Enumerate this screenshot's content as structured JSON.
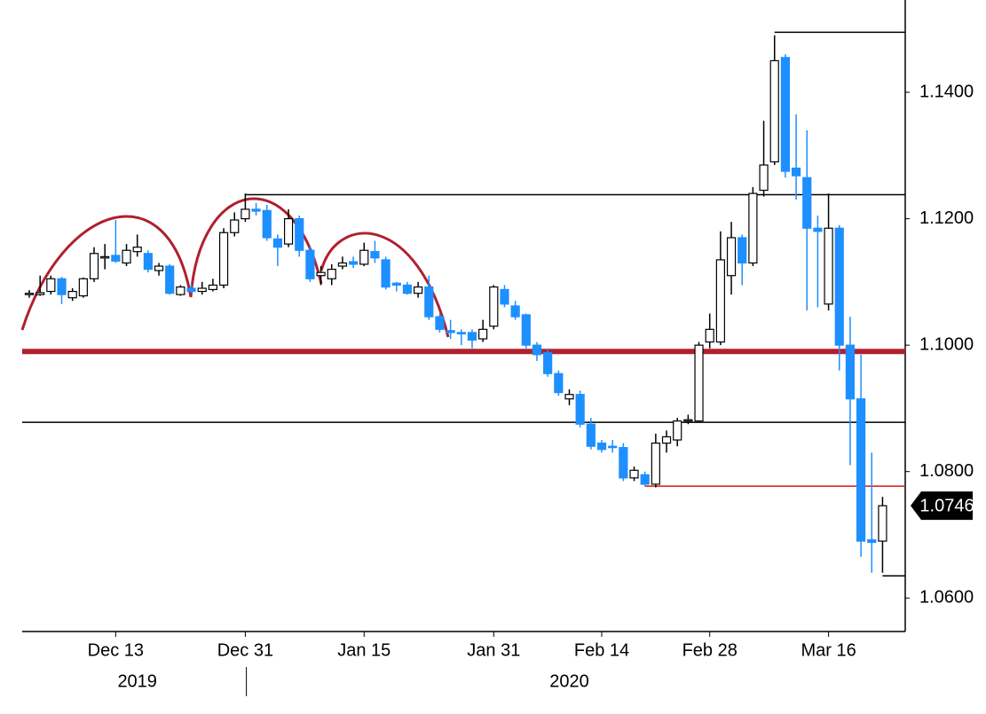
{
  "chart_data": {
    "type": "candlestick",
    "categories": [
      null,
      null,
      null,
      null,
      null,
      null,
      null,
      null,
      "Dec 13",
      null,
      null,
      null,
      null,
      null,
      null,
      null,
      null,
      null,
      null,
      null,
      "Dec 31",
      null,
      null,
      null,
      null,
      null,
      null,
      null,
      null,
      null,
      null,
      "Jan 15",
      null,
      null,
      null,
      null,
      null,
      null,
      null,
      null,
      null,
      null,
      null,
      "Jan 31",
      null,
      null,
      null,
      null,
      null,
      null,
      null,
      null,
      null,
      "Feb 14",
      null,
      null,
      null,
      null,
      null,
      null,
      null,
      null,
      null,
      "Feb 28",
      null,
      null,
      null,
      null,
      null,
      null,
      null,
      null,
      null,
      null,
      "Mar 16",
      null,
      null,
      null,
      null,
      null
    ],
    "years": [
      "2019",
      "2020"
    ],
    "series": [
      {
        "up_color": "#ffffff",
        "down_color": "#1e8fff",
        "open": [
          1.108,
          1.108,
          1.1085,
          1.1105,
          1.1075,
          1.1078,
          1.1105,
          1.1138,
          1.1142,
          1.113,
          1.1148,
          1.1145,
          1.1118,
          1.1125,
          1.108,
          1.109,
          1.1085,
          1.1088,
          1.1095,
          1.1178,
          1.12,
          1.1215,
          1.1213,
          1.1168,
          1.116,
          1.12,
          1.115,
          1.111,
          1.1105,
          1.1125,
          1.1132,
          1.1128,
          1.1148,
          1.1135,
          1.1098,
          1.1095,
          1.1082,
          1.1092,
          1.1045,
          1.1023,
          1.102,
          1.102,
          1.101,
          1.103,
          1.1088,
          1.1062,
          1.1048,
          1.1,
          1.0988,
          1.0955,
          1.0915,
          1.0922,
          1.0875,
          1.0845,
          1.084,
          1.0838,
          1.079,
          1.0795,
          1.078,
          1.0845,
          1.085,
          1.088,
          1.088,
          1.1005,
          1.1005,
          1.111,
          1.117,
          1.113,
          1.1245,
          1.129,
          1.1455,
          1.128,
          1.1265,
          1.1185,
          1.1065,
          1.1185,
          1.1,
          1.0915,
          1.0692,
          1.069
        ],
        "high": [
          1.1087,
          1.111,
          1.111,
          1.1108,
          1.109,
          1.1107,
          1.1155,
          1.116,
          1.1198,
          1.116,
          1.1175,
          1.115,
          1.113,
          1.1128,
          1.1095,
          1.1097,
          1.11,
          1.1105,
          1.1185,
          1.121,
          1.124,
          1.1225,
          1.1222,
          1.1175,
          1.1215,
          1.1205,
          1.1158,
          1.1125,
          1.1128,
          1.114,
          1.114,
          1.1162,
          1.1165,
          1.114,
          1.11,
          1.11,
          1.11,
          1.111,
          1.105,
          1.104,
          1.1025,
          1.1025,
          1.104,
          1.1095,
          1.1095,
          1.107,
          1.105,
          1.1005,
          1.0995,
          1.096,
          1.093,
          1.0928,
          1.0885,
          1.085,
          1.085,
          1.0845,
          1.0808,
          1.08,
          1.086,
          1.0865,
          1.0885,
          1.089,
          1.1005,
          1.105,
          1.118,
          1.1195,
          1.1175,
          1.125,
          1.1355,
          1.149,
          1.146,
          1.1365,
          1.134,
          1.1205,
          1.124,
          1.119,
          1.1045,
          1.0985,
          1.083,
          1.076
        ],
        "low": [
          1.1075,
          1.1078,
          1.108,
          1.1065,
          1.107,
          1.1075,
          1.11,
          1.112,
          1.113,
          1.1125,
          1.114,
          1.1115,
          1.111,
          1.108,
          1.1078,
          1.1082,
          1.108,
          1.1085,
          1.109,
          1.1172,
          1.1195,
          1.1205,
          1.1165,
          1.1125,
          1.1155,
          1.114,
          1.11,
          1.1095,
          1.1095,
          1.112,
          1.1122,
          1.1125,
          1.113,
          1.1088,
          1.1085,
          1.108,
          1.1075,
          1.104,
          1.102,
          1.101,
          1.1,
          1.0995,
          1.1005,
          1.1025,
          1.106,
          1.104,
          1.0995,
          1.0975,
          1.095,
          1.092,
          1.0905,
          1.087,
          1.0835,
          1.083,
          1.083,
          1.0785,
          1.0785,
          1.0777,
          1.0775,
          1.083,
          1.084,
          1.0875,
          1.0878,
          1.0995,
          1.1,
          1.108,
          1.1095,
          1.1125,
          1.1235,
          1.1285,
          1.1265,
          1.123,
          1.1055,
          1.106,
          1.1055,
          1.096,
          1.081,
          1.0665,
          1.064,
          1.064
        ],
        "close": [
          1.1082,
          1.1083,
          1.1105,
          1.108,
          1.1085,
          1.1105,
          1.1145,
          1.114,
          1.1133,
          1.115,
          1.1155,
          1.112,
          1.1125,
          1.1082,
          1.1092,
          1.1085,
          1.109,
          1.1095,
          1.1178,
          1.1198,
          1.1215,
          1.1212,
          1.117,
          1.1155,
          1.12,
          1.115,
          1.1105,
          1.1115,
          1.112,
          1.113,
          1.1128,
          1.115,
          1.1138,
          1.1092,
          1.1095,
          1.1082,
          1.1092,
          1.1045,
          1.1025,
          1.102,
          1.1018,
          1.1008,
          1.1025,
          1.1092,
          1.1065,
          1.1045,
          1.1,
          1.0985,
          1.0955,
          1.0925,
          1.0922,
          1.0875,
          1.084,
          1.0835,
          1.0838,
          1.079,
          1.0802,
          1.078,
          1.0845,
          1.0855,
          1.088,
          1.0882,
          1.1,
          1.1025,
          1.1135,
          1.117,
          1.113,
          1.124,
          1.1285,
          1.145,
          1.1275,
          1.1268,
          1.1185,
          1.118,
          1.1185,
          1.1,
          1.0915,
          1.069,
          1.0688,
          1.0746
        ]
      }
    ],
    "levels": [
      {
        "value": 1.1495,
        "color": "#000000"
      },
      {
        "value": 1.1238,
        "color": "#000000"
      },
      {
        "value": 1.099,
        "color": "#b0202f"
      },
      {
        "value": 1.0878,
        "color": "#000000"
      },
      {
        "value": 1.0777,
        "color": "#e01010"
      },
      {
        "value": 1.0635,
        "color": "#000000"
      }
    ],
    "last_price": 1.0746,
    "ylim": [
      1.0547,
      1.1546
    ],
    "yticks": [
      {
        "value": 1.06,
        "label": "1.0600"
      },
      {
        "value": 1.08,
        "label": "1.0800"
      },
      {
        "value": 1.1,
        "label": "1.1000"
      },
      {
        "value": 1.12,
        "label": "1.1200"
      },
      {
        "value": 1.14,
        "label": "1.1400"
      }
    ]
  }
}
